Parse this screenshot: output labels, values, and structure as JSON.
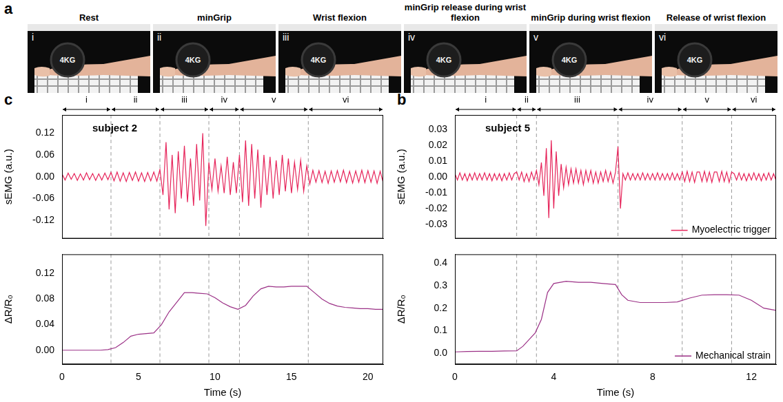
{
  "panel_a": {
    "letter": "a",
    "weight_label": "4KG",
    "photos": [
      {
        "numeral": "i",
        "title": "Rest"
      },
      {
        "numeral": "ii",
        "title": "minGrip"
      },
      {
        "numeral": "iii",
        "title": "Wrist flexion"
      },
      {
        "numeral": "iv",
        "title": "minGrip release during wrist flexion"
      },
      {
        "numeral": "v",
        "title": "minGrip during wrist flexion"
      },
      {
        "numeral": "vi",
        "title": "Release of wrist flexion"
      }
    ]
  },
  "chart_data": [
    {
      "type": "line",
      "panel": "c",
      "x_label": "Time (s)",
      "xlim": [
        0,
        21
      ],
      "xticks": [
        0,
        5,
        10,
        15,
        20
      ],
      "phases": [
        {
          "label": "i",
          "start": 0,
          "end": 3.2
        },
        {
          "label": "ii",
          "start": 3.2,
          "end": 6.4
        },
        {
          "label": "iii",
          "start": 6.4,
          "end": 9.6
        },
        {
          "label": "iv",
          "start": 9.6,
          "end": 11.6
        },
        {
          "label": "v",
          "start": 11.6,
          "end": 16.1
        },
        {
          "label": "vi",
          "start": 16.1,
          "end": 21
        }
      ],
      "subplots": [
        {
          "type": "line",
          "annotation": "subject 2",
          "y_label": "sEMG (a.u.)",
          "ylim": [
            -0.17,
            0.17
          ],
          "yticks": [
            -0.12,
            -0.06,
            {
              "value": 0,
              "label": "0.00"
            },
            0.06,
            0.12
          ],
          "grid": false,
          "tick_labels": "y",
          "series": [
            {
              "color": "#e6245a",
              "x": [
                0,
                0.2,
                0.4,
                0.6,
                0.8,
                1,
                1.2,
                1.4,
                1.6,
                1.8,
                2,
                2.2,
                2.4,
                2.6,
                2.8,
                3,
                3.2,
                3.4,
                3.6,
                3.8,
                4,
                4.2,
                4.4,
                4.6,
                4.8,
                5,
                5.2,
                5.4,
                5.6,
                5.8,
                6,
                6.2,
                6.4,
                6.6,
                6.8,
                7,
                7.2,
                7.4,
                7.6,
                7.8,
                8,
                8.2,
                8.4,
                8.6,
                8.8,
                9,
                9.2,
                9.4,
                9.6,
                9.8,
                10,
                10.2,
                10.4,
                10.6,
                10.8,
                11,
                11.2,
                11.4,
                11.6,
                11.8,
                12,
                12.2,
                12.4,
                12.6,
                12.8,
                13,
                13.2,
                13.4,
                13.6,
                13.8,
                14,
                14.2,
                14.4,
                14.6,
                14.8,
                15,
                15.2,
                15.4,
                15.6,
                15.8,
                16,
                16.2,
                16.4,
                16.6,
                16.8,
                17,
                17.2,
                17.4,
                17.6,
                17.8,
                18,
                18.2,
                18.4,
                18.6,
                18.8,
                19,
                19.2,
                19.4,
                19.6,
                19.8,
                20,
                20.2,
                20.4,
                20.6,
                20.8,
                21
              ],
              "values": [
                0.008,
                -0.009,
                0.01,
                -0.007,
                0.009,
                -0.01,
                0.008,
                -0.009,
                0.011,
                -0.008,
                0.009,
                -0.01,
                0.008,
                -0.009,
                0.01,
                -0.008,
                0.012,
                -0.011,
                0.013,
                -0.012,
                0.011,
                -0.013,
                0.012,
                -0.01,
                0.013,
                -0.012,
                0.011,
                -0.013,
                0.012,
                -0.011,
                0.013,
                -0.012,
                0.02,
                -0.05,
                0.095,
                -0.09,
                0.06,
                -0.1,
                0.07,
                -0.06,
                0.085,
                -0.07,
                0.05,
                -0.08,
                0.09,
                -0.065,
                0.12,
                -0.135,
                0.04,
                -0.035,
                0.05,
                -0.04,
                0.03,
                -0.045,
                0.055,
                -0.05,
                0.04,
                -0.045,
                0.06,
                -0.07,
                0.1,
                -0.08,
                0.09,
                -0.06,
                0.075,
                -0.085,
                0.06,
                -0.05,
                0.055,
                -0.06,
                0.045,
                -0.05,
                0.06,
                -0.04,
                0.05,
                -0.045,
                0.04,
                -0.035,
                0.045,
                -0.04,
                0.03,
                -0.02,
                0.018,
                -0.015,
                0.017,
                -0.016,
                0.015,
                -0.018,
                0.016,
                -0.015,
                0.017,
                -0.014,
                0.018,
                -0.016,
                0.015,
                -0.017,
                0.016,
                -0.015,
                0.018,
                -0.016,
                0.017,
                -0.015,
                0.016,
                -0.018,
                0.015,
                -0.016
              ]
            }
          ]
        },
        {
          "type": "line",
          "y_label": "ΔR/R₀",
          "ylim": [
            -0.022,
            0.15
          ],
          "yticks": [
            {
              "value": 0,
              "label": "0.00"
            },
            0.04,
            0.08,
            0.12
          ],
          "grid": false,
          "series": [
            {
              "color": "#9b3086",
              "x": [
                0,
                0.5,
                1,
                1.5,
                2,
                2.5,
                3,
                3.5,
                4,
                4.5,
                5,
                5.5,
                6,
                6.5,
                7,
                7.5,
                8,
                8.5,
                9,
                9.5,
                10,
                10.5,
                11,
                11.5,
                12,
                12.5,
                13,
                13.5,
                14,
                14.5,
                15,
                15.5,
                16,
                16.5,
                17,
                17.5,
                18,
                18.5,
                19,
                19.5,
                20,
                20.5,
                21
              ],
              "values": [
                0,
                0,
                0,
                0,
                0,
                0,
                0.001,
                0.004,
                0.012,
                0.022,
                0.025,
                0.026,
                0.027,
                0.04,
                0.06,
                0.075,
                0.09,
                0.09,
                0.089,
                0.088,
                0.082,
                0.074,
                0.068,
                0.064,
                0.07,
                0.085,
                0.096,
                0.1,
                0.099,
                0.099,
                0.1,
                0.1,
                0.1,
                0.09,
                0.08,
                0.073,
                0.069,
                0.067,
                0.066,
                0.065,
                0.065,
                0.064,
                0.064
              ]
            }
          ]
        }
      ]
    },
    {
      "type": "line",
      "panel": "b",
      "x_label": "Time (s)",
      "xlim": [
        0,
        13
      ],
      "xticks": [
        0,
        4,
        8,
        12
      ],
      "phases": [
        {
          "label": "i",
          "start": 0,
          "end": 2.5
        },
        {
          "label": "ii",
          "start": 2.5,
          "end": 3.3
        },
        {
          "label": "iii",
          "start": 3.3,
          "end": 6.6
        },
        {
          "label": "iv",
          "start": 6.6,
          "end": 9.2
        },
        {
          "label": "v",
          "start": 9.2,
          "end": 11.2
        },
        {
          "label": "vi",
          "start": 11.2,
          "end": 13
        }
      ],
      "subplots": [
        {
          "type": "line",
          "annotation": "subject 5",
          "y_label": "sEMG (a.u.)",
          "ylim": [
            -0.039,
            0.039
          ],
          "yticks": [
            -0.03,
            -0.02,
            -0.01,
            {
              "value": 0,
              "label": "0.00"
            },
            0.01,
            0.02,
            0.03
          ],
          "grid": false,
          "tick_labels": "y",
          "legend": "lower right",
          "series": [
            {
              "name": "Myoelectric trigger",
              "color": "#e6245a",
              "x": [
                0,
                0.1,
                0.2,
                0.3,
                0.4,
                0.5,
                0.6,
                0.7,
                0.8,
                0.9,
                1,
                1.1,
                1.2,
                1.3,
                1.4,
                1.5,
                1.6,
                1.7,
                1.8,
                1.9,
                2,
                2.1,
                2.2,
                2.3,
                2.4,
                2.5,
                2.6,
                2.7,
                2.8,
                2.9,
                3,
                3.1,
                3.2,
                3.3,
                3.4,
                3.5,
                3.6,
                3.7,
                3.8,
                3.9,
                4,
                4.1,
                4.2,
                4.3,
                4.4,
                4.5,
                4.6,
                4.7,
                4.8,
                4.9,
                5,
                5.1,
                5.2,
                5.3,
                5.4,
                5.5,
                5.6,
                5.7,
                5.8,
                5.9,
                6,
                6.1,
                6.2,
                6.3,
                6.4,
                6.5,
                6.6,
                6.7,
                6.8,
                6.9,
                7,
                7.1,
                7.2,
                7.3,
                7.4,
                7.5,
                7.6,
                7.7,
                7.8,
                7.9,
                8,
                8.1,
                8.2,
                8.3,
                8.4,
                8.5,
                8.6,
                8.7,
                8.8,
                8.9,
                9,
                9.1,
                9.2,
                9.3,
                9.4,
                9.5,
                9.6,
                9.7,
                9.8,
                9.9,
                10,
                10.1,
                10.2,
                10.3,
                10.4,
                10.5,
                10.6,
                10.7,
                10.8,
                10.9,
                11,
                11.1,
                11.2,
                11.3,
                11.4,
                11.5,
                11.6,
                11.7,
                11.8,
                11.9,
                12,
                12.1,
                12.2,
                12.3,
                12.4,
                12.5,
                12.6,
                12.7,
                12.8,
                12.9,
                13
              ],
              "values": [
                0.002,
                -0.002,
                0.0025,
                -0.002,
                0.002,
                -0.0025,
                0.002,
                -0.002,
                0.0025,
                -0.002,
                0.002,
                -0.002,
                0.0025,
                -0.002,
                0.002,
                -0.0025,
                0.002,
                -0.002,
                0.002,
                -0.0025,
                0.002,
                -0.002,
                0.0025,
                -0.002,
                0.002,
                0.003,
                -0.002,
                0.003,
                -0.003,
                0.002,
                -0.003,
                0.003,
                -0.002,
                0.004,
                -0.005,
                0.009,
                -0.012,
                0.018,
                -0.026,
                0.023,
                -0.02,
                0.016,
                -0.012,
                0.008,
                -0.007,
                0.006,
                -0.005,
                0.005,
                -0.004,
                0.005,
                -0.004,
                0.004,
                -0.005,
                0.004,
                -0.003,
                0.004,
                -0.004,
                0.003,
                -0.004,
                0.003,
                -0.003,
                0.004,
                -0.003,
                0.003,
                -0.004,
                0.003,
                0.019,
                -0.02,
                0.002,
                -0.002,
                0.0025,
                -0.002,
                0.002,
                -0.002,
                0.002,
                -0.002,
                0.0025,
                -0.002,
                0.002,
                -0.002,
                0.002,
                -0.002,
                0.0025,
                -0.002,
                0.002,
                -0.002,
                0.002,
                -0.002,
                0.0025,
                -0.002,
                0.002,
                -0.002,
                0.003,
                -0.003,
                0.0035,
                -0.003,
                0.003,
                -0.0035,
                0.003,
                0.003,
                -0.003,
                0.0035,
                -0.003,
                0.003,
                -0.0035,
                0.003,
                0.003,
                -0.003,
                0.0035,
                -0.003,
                0.003,
                -0.0035,
                0.003,
                0.002,
                -0.002,
                0.0025,
                -0.002,
                0.002,
                -0.0025,
                0.002,
                -0.002,
                0.0025,
                -0.002,
                0.002,
                -0.0025,
                0.002,
                -0.002,
                0.0025,
                -0.002,
                0.002,
                -0.0025
              ]
            }
          ]
        },
        {
          "type": "line",
          "y_label": "ΔR/R₀",
          "ylim": [
            -0.05,
            0.44
          ],
          "yticks": [
            {
              "value": 0,
              "label": "0.0"
            },
            0.1,
            0.2,
            0.3,
            0.4
          ],
          "grid": false,
          "legend": "lower right",
          "series": [
            {
              "name": "Mechanical strain",
              "color": "#9b3086",
              "x": [
                0,
                0.5,
                1,
                1.5,
                2,
                2.5,
                2.75,
                3,
                3.25,
                3.5,
                3.75,
                4,
                4.5,
                5,
                5.5,
                6,
                6.5,
                6.75,
                7,
                7.5,
                8,
                8.5,
                9,
                9.5,
                10,
                10.5,
                11,
                11.5,
                12,
                12.5,
                13
              ],
              "values": [
                0.005,
                0.007,
                0.008,
                0.008,
                0.009,
                0.01,
                0.03,
                0.06,
                0.09,
                0.15,
                0.27,
                0.31,
                0.32,
                0.315,
                0.315,
                0.31,
                0.305,
                0.26,
                0.235,
                0.225,
                0.225,
                0.225,
                0.228,
                0.245,
                0.258,
                0.26,
                0.26,
                0.258,
                0.235,
                0.2,
                0.19
              ]
            }
          ]
        }
      ]
    }
  ]
}
